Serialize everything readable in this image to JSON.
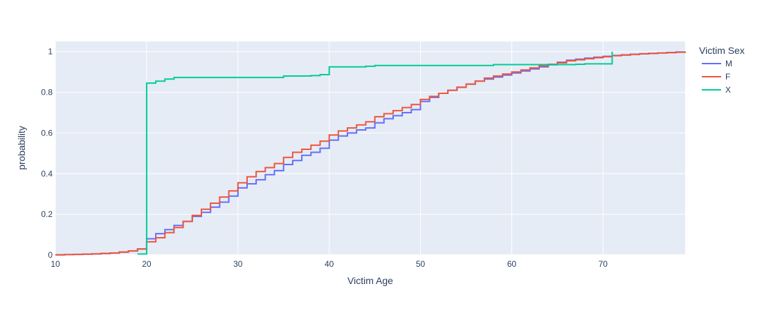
{
  "chart_data": {
    "type": "line",
    "line_shape": "step",
    "xlabel": "Victim Age",
    "ylabel": "probability",
    "xlim": [
      10,
      79
    ],
    "ylim": [
      0,
      1.05
    ],
    "x_ticks": [
      10,
      20,
      30,
      40,
      50,
      60,
      70
    ],
    "y_ticks": [
      0,
      0.2,
      0.4,
      0.6,
      0.8,
      1
    ],
    "y_tick_labels": [
      "0",
      "0.2",
      "0.4",
      "0.6",
      "0.8",
      "1"
    ],
    "grid": true,
    "legend": {
      "title": "Victim Sex",
      "position": "top-right-outside"
    },
    "series": [
      {
        "name": "M",
        "color": "#636efa",
        "x": [
          10,
          11,
          12,
          13,
          14,
          15,
          16,
          17,
          18,
          19,
          20,
          21,
          22,
          23,
          24,
          25,
          26,
          27,
          28,
          29,
          30,
          31,
          32,
          33,
          34,
          35,
          36,
          37,
          38,
          39,
          40,
          41,
          42,
          43,
          44,
          45,
          46,
          47,
          48,
          49,
          50,
          51,
          52,
          53,
          54,
          55,
          56,
          57,
          58,
          59,
          60,
          61,
          62,
          63,
          64,
          65,
          66,
          67,
          68,
          69,
          70,
          71,
          72,
          73,
          74,
          75,
          76,
          77,
          78,
          79
        ],
        "y": [
          0.001,
          0.002,
          0.003,
          0.004,
          0.005,
          0.007,
          0.01,
          0.014,
          0.02,
          0.03,
          0.08,
          0.105,
          0.125,
          0.145,
          0.165,
          0.19,
          0.21,
          0.235,
          0.26,
          0.29,
          0.33,
          0.35,
          0.37,
          0.395,
          0.415,
          0.445,
          0.465,
          0.49,
          0.505,
          0.525,
          0.565,
          0.585,
          0.6,
          0.615,
          0.625,
          0.65,
          0.67,
          0.685,
          0.7,
          0.715,
          0.755,
          0.775,
          0.795,
          0.81,
          0.825,
          0.84,
          0.855,
          0.865,
          0.875,
          0.885,
          0.895,
          0.905,
          0.915,
          0.925,
          0.935,
          0.948,
          0.958,
          0.963,
          0.968,
          0.973,
          0.977,
          0.981,
          0.984,
          0.987,
          0.99,
          0.992,
          0.994,
          0.996,
          0.998,
          1.0
        ]
      },
      {
        "name": "F",
        "color": "#ef553b",
        "x": [
          10,
          11,
          12,
          13,
          14,
          15,
          16,
          17,
          18,
          19,
          20,
          21,
          22,
          23,
          24,
          25,
          26,
          27,
          28,
          29,
          30,
          31,
          32,
          33,
          34,
          35,
          36,
          37,
          38,
          39,
          40,
          41,
          42,
          43,
          44,
          45,
          46,
          47,
          48,
          49,
          50,
          51,
          52,
          53,
          54,
          55,
          56,
          57,
          58,
          59,
          60,
          61,
          62,
          63,
          64,
          65,
          66,
          67,
          68,
          69,
          70,
          71,
          72,
          73,
          74,
          75,
          76,
          77,
          78,
          79
        ],
        "y": [
          0.001,
          0.002,
          0.003,
          0.004,
          0.006,
          0.008,
          0.01,
          0.015,
          0.02,
          0.03,
          0.065,
          0.085,
          0.11,
          0.135,
          0.165,
          0.195,
          0.225,
          0.255,
          0.285,
          0.315,
          0.355,
          0.385,
          0.41,
          0.43,
          0.45,
          0.48,
          0.505,
          0.52,
          0.54,
          0.56,
          0.59,
          0.61,
          0.625,
          0.64,
          0.655,
          0.68,
          0.695,
          0.71,
          0.725,
          0.74,
          0.765,
          0.78,
          0.795,
          0.81,
          0.825,
          0.84,
          0.855,
          0.87,
          0.88,
          0.89,
          0.9,
          0.91,
          0.92,
          0.93,
          0.938,
          0.945,
          0.955,
          0.96,
          0.965,
          0.97,
          0.975,
          0.98,
          0.983,
          0.986,
          0.989,
          0.991,
          0.993,
          0.995,
          0.997,
          1.0
        ]
      },
      {
        "name": "X",
        "color": "#00cc96",
        "x": [
          19,
          20,
          21,
          22,
          23,
          24,
          25,
          26,
          27,
          28,
          29,
          30,
          31,
          32,
          33,
          34,
          35,
          36,
          37,
          38,
          39,
          40,
          41,
          42,
          43,
          44,
          45,
          46,
          47,
          48,
          49,
          50,
          51,
          52,
          53,
          54,
          55,
          56,
          57,
          58,
          59,
          60,
          61,
          62,
          63,
          64,
          65,
          66,
          67,
          68,
          69,
          70,
          71
        ],
        "y": [
          0.005,
          0.845,
          0.855,
          0.865,
          0.873,
          0.873,
          0.873,
          0.873,
          0.873,
          0.873,
          0.873,
          0.873,
          0.873,
          0.873,
          0.873,
          0.873,
          0.88,
          0.88,
          0.88,
          0.882,
          0.887,
          0.925,
          0.925,
          0.925,
          0.925,
          0.928,
          0.932,
          0.932,
          0.932,
          0.932,
          0.932,
          0.932,
          0.932,
          0.932,
          0.932,
          0.932,
          0.932,
          0.932,
          0.932,
          0.936,
          0.936,
          0.936,
          0.936,
          0.936,
          0.936,
          0.936,
          0.936,
          0.936,
          0.938,
          0.94,
          0.94,
          0.94,
          1.0
        ]
      }
    ]
  }
}
